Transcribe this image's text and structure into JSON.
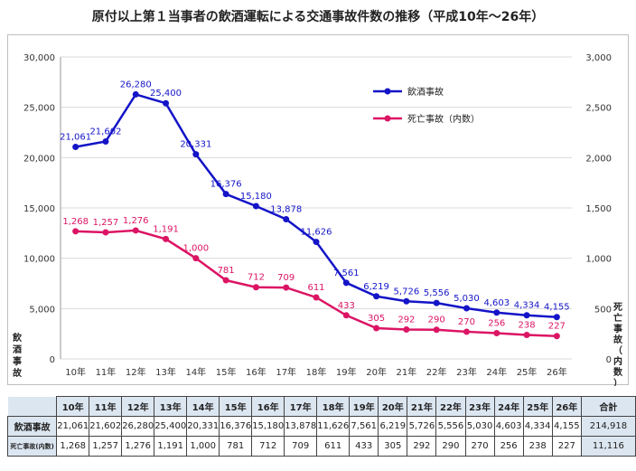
{
  "title": "原付以上第１当事者の飲酒運転による交通事故件数の推移（平成10年～26年）",
  "colors": {
    "drunk": "#1414c8",
    "fatal": "#dc1464",
    "grid": "#d9d9d9",
    "table_head": "#dce6f1"
  },
  "chart_data": {
    "type": "line",
    "categories": [
      "10年",
      "11年",
      "12年",
      "13年",
      "14年",
      "15年",
      "16年",
      "17年",
      "18年",
      "19年",
      "20年",
      "21年",
      "22年",
      "23年",
      "24年",
      "25年",
      "26年"
    ],
    "left_axis": {
      "label": "飲酒事故",
      "ylim": [
        0,
        30000
      ],
      "ticks": [
        "0",
        "5,000",
        "10,000",
        "15,000",
        "20,000",
        "25,000",
        "30,000"
      ]
    },
    "right_axis": {
      "label": "死亡事故（内数）",
      "ylim": [
        0,
        3000
      ],
      "ticks": [
        "0",
        "500",
        "1,000",
        "1,500",
        "2,000",
        "2,500",
        "3,000"
      ]
    },
    "grid": true,
    "legend_position": "top-right",
    "series": [
      {
        "name": "飲酒事故",
        "axis": "left",
        "values": [
          21061,
          21602,
          26280,
          25400,
          20331,
          16376,
          15180,
          13878,
          11626,
          7561,
          6219,
          5726,
          5556,
          5030,
          4603,
          4334,
          4155
        ],
        "labels": [
          "21,061",
          "21,602",
          "26,280",
          "25,400",
          "20,331",
          "16,376",
          "15,180",
          "13,878",
          "11,626",
          "7,561",
          "6,219",
          "5,726",
          "5,556",
          "5,030",
          "4,603",
          "4,334",
          "4,155"
        ]
      },
      {
        "name": "死亡事故（内数）",
        "axis": "right",
        "values": [
          1268,
          1257,
          1276,
          1191,
          1000,
          781,
          712,
          709,
          611,
          433,
          305,
          292,
          290,
          270,
          256,
          238,
          227
        ],
        "labels": [
          "1,268",
          "1,257",
          "1,276",
          "1,191",
          "1,000",
          "781",
          "712",
          "709",
          "611",
          "433",
          "305",
          "292",
          "290",
          "270",
          "256",
          "238",
          "227"
        ]
      }
    ]
  },
  "table": {
    "total_header": "合計",
    "rows": [
      {
        "label": "飲酒事故",
        "values": [
          "21,061",
          "21,602",
          "26,280",
          "25,400",
          "20,331",
          "16,376",
          "15,180",
          "13,878",
          "11,626",
          "7,561",
          "6,219",
          "5,726",
          "5,556",
          "5,030",
          "4,603",
          "4,334",
          "4,155"
        ],
        "total": "214,918"
      },
      {
        "label": "死亡事故(内数)",
        "values": [
          "1,268",
          "1,257",
          "1,276",
          "1,191",
          "1,000",
          "781",
          "712",
          "709",
          "611",
          "433",
          "305",
          "292",
          "290",
          "270",
          "256",
          "238",
          "227"
        ],
        "total": "11,116"
      }
    ]
  }
}
